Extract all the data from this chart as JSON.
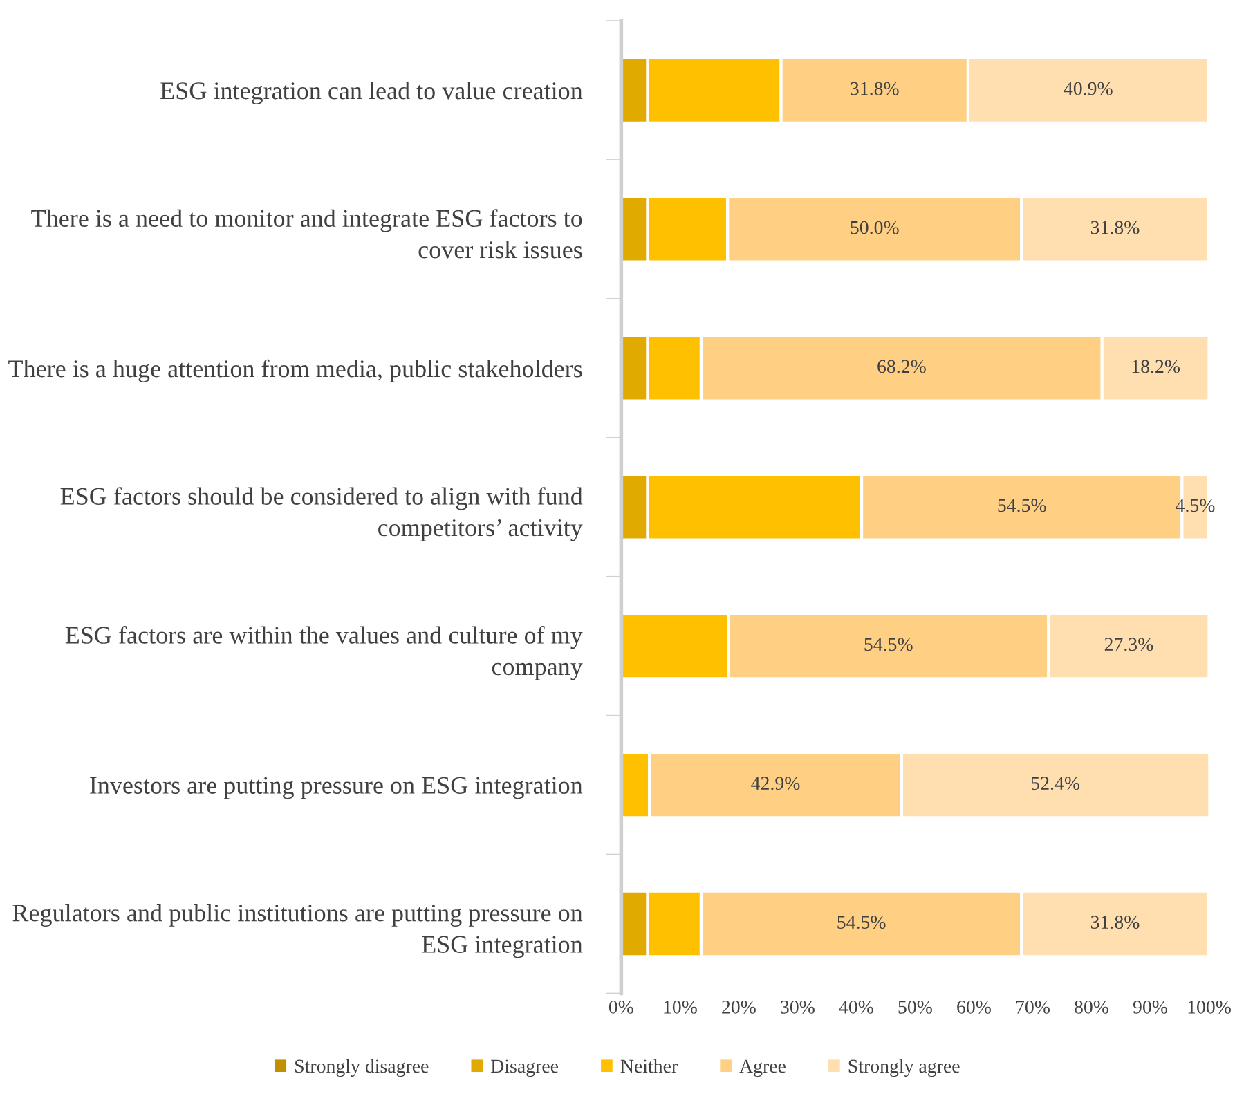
{
  "chart_data": {
    "type": "bar",
    "orientation": "horizontal",
    "stacked": true,
    "categories": [
      "ESG integration can lead to value creation",
      "There is a need to monitor and integrate ESG factors to cover risk issues",
      "There is a huge attention from media, public stakeholders",
      "ESG factors should be considered to align with fund competitors’ activity",
      "ESG factors are within the values and culture of my company",
      "Investors are putting pressure on ESG integration",
      "Regulators and public institutions are putting pressure on ESG integration"
    ],
    "series": [
      {
        "name": "Strongly disagree",
        "color": "#c09000",
        "values": [
          0,
          0,
          0,
          0,
          0,
          0,
          0
        ]
      },
      {
        "name": "Disagree",
        "color": "#e0aa00",
        "values": [
          4.5,
          4.5,
          4.5,
          4.5,
          0,
          0,
          4.5
        ]
      },
      {
        "name": "Neither",
        "color": "#ffc000",
        "values": [
          22.7,
          13.6,
          9.1,
          36.4,
          18.2,
          4.8,
          9.1
        ]
      },
      {
        "name": "Agree",
        "color": "#ffd084",
        "values": [
          31.8,
          50.0,
          68.2,
          54.5,
          54.5,
          42.9,
          54.5
        ],
        "value_labels": [
          "31.8%",
          "50.0%",
          "68.2%",
          "54.5%",
          "54.5%",
          "42.9%",
          "54.5%"
        ]
      },
      {
        "name": "Strongly agree",
        "color": "#ffdfb0",
        "values": [
          40.9,
          31.8,
          18.2,
          4.5,
          27.3,
          52.4,
          31.8
        ],
        "value_labels": [
          "40.9%",
          "31.8%",
          "18.2%",
          "4.5%",
          "27.3%",
          "52.4%",
          "31.8%"
        ]
      }
    ],
    "xlim": [
      0,
      100
    ],
    "xticks": [
      {
        "value": 0,
        "label": "0%"
      },
      {
        "value": 10,
        "label": "10%"
      },
      {
        "value": 20,
        "label": "20%"
      },
      {
        "value": 30,
        "label": "30%"
      },
      {
        "value": 40,
        "label": "40%"
      },
      {
        "value": 50,
        "label": "50%"
      },
      {
        "value": 60,
        "label": "60%"
      },
      {
        "value": 70,
        "label": "70%"
      },
      {
        "value": 80,
        "label": "80%"
      },
      {
        "value": 90,
        "label": "90%"
      },
      {
        "value": 100,
        "label": "100%"
      }
    ],
    "grid": false,
    "legend": "bottom"
  }
}
